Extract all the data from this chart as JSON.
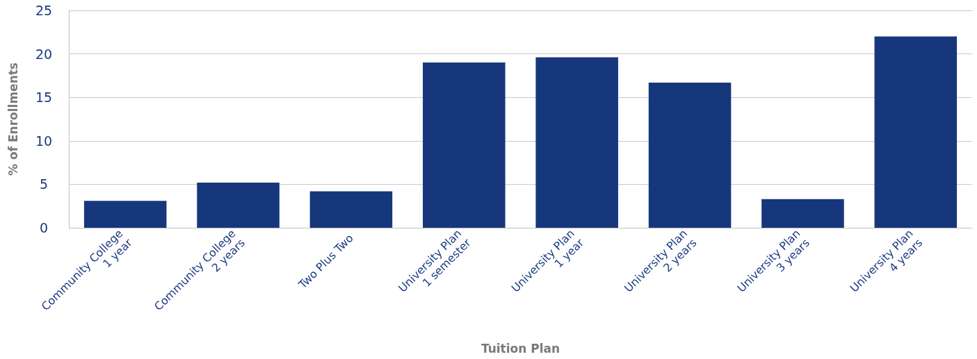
{
  "chart_data": {
    "type": "bar",
    "xlabel": "Tuition Plan",
    "ylabel": "% of Enrollments",
    "categories": [
      "Community College\n1 year",
      "Community College\n2 years",
      "Two Plus Two",
      "University Plan\n1 semester",
      "University Plan\n1 year",
      "University Plan\n2 years",
      "University Plan\n3 years",
      "University Plan\n4 years"
    ],
    "values": [
      3.1,
      5.2,
      4.2,
      19.0,
      19.6,
      16.7,
      3.3,
      22.0
    ],
    "color": "#16377c",
    "ylim": [
      0,
      25
    ],
    "yticks": [
      0,
      5,
      10,
      15,
      20,
      25
    ],
    "grid": "y"
  }
}
